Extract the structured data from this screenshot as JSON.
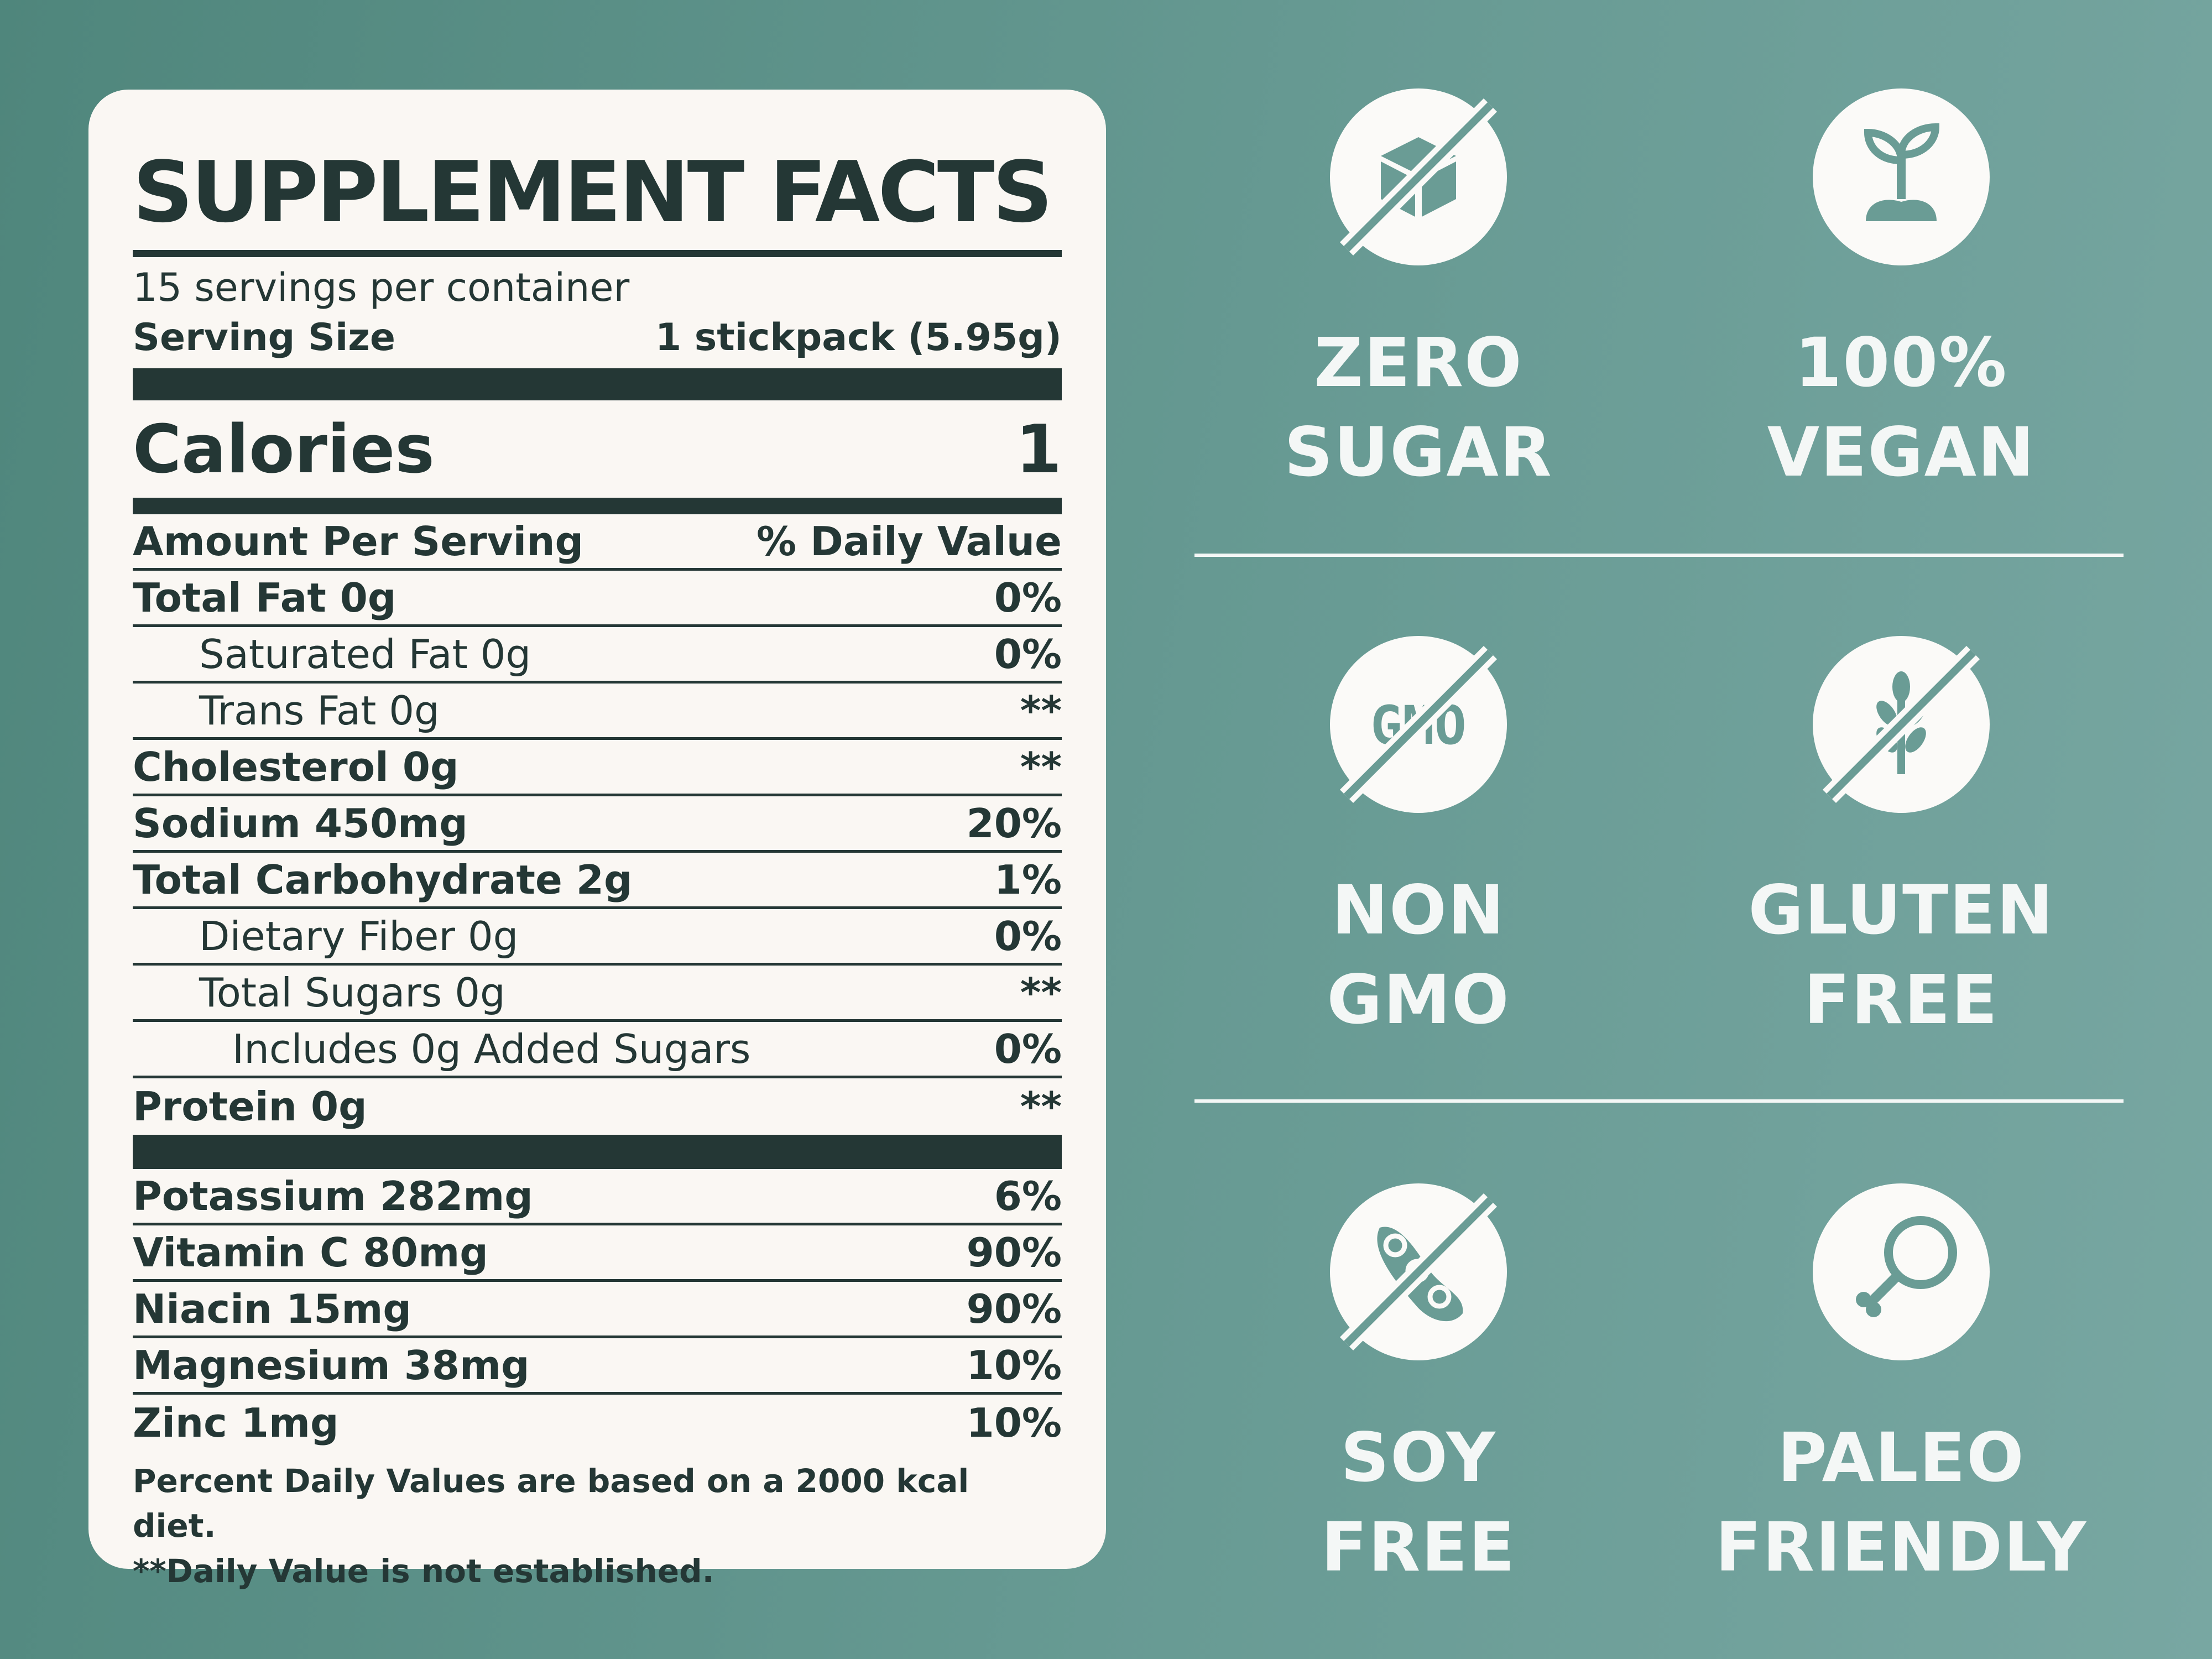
{
  "label": {
    "title": "SUPPLEMENT FACTS",
    "servings_per_container": "15 servings per container",
    "serving_size_label": "Serving Size",
    "serving_size_value": "1 stickpack (5.95g)",
    "calories_label": "Calories",
    "calories_value": "1",
    "header_amount": "Amount Per Serving",
    "header_dv": "% Daily Value",
    "nutrients": [
      {
        "name": "Total Fat 0g",
        "dv": "0%"
      },
      {
        "name": "Saturated Fat 0g",
        "dv": "0%"
      },
      {
        "name": "Trans Fat 0g",
        "dv": "**"
      },
      {
        "name": "Cholesterol 0g",
        "dv": "**"
      },
      {
        "name": "Sodium 450mg",
        "dv": "20%"
      },
      {
        "name": "Total Carbohydrate 2g",
        "dv": "1%"
      },
      {
        "name": "Dietary Fiber 0g",
        "dv": "0%"
      },
      {
        "name": "Total Sugars 0g",
        "dv": "**"
      },
      {
        "name": "Includes 0g Added Sugars",
        "dv": "0%"
      },
      {
        "name": "Protein 0g",
        "dv": "**"
      }
    ],
    "minerals": [
      {
        "name": "Potassium 282mg",
        "dv": "6%"
      },
      {
        "name": "Vitamin C 80mg",
        "dv": "90%"
      },
      {
        "name": "Niacin 15mg",
        "dv": "90%"
      },
      {
        "name": "Magnesium 38mg",
        "dv": "10%"
      },
      {
        "name": "Zinc 1mg",
        "dv": "10%"
      }
    ],
    "footnote_1": "Percent Daily Values are based on a 2000 kcal diet.",
    "footnote_2": "**Daily Value is not established."
  },
  "badges": [
    {
      "icon": "sugar-cube-icon",
      "line1": "ZERO",
      "line2": "SUGAR"
    },
    {
      "icon": "plant-sprout-icon",
      "line1": "100%",
      "line2": "VEGAN"
    },
    {
      "icon": "gmo-icon",
      "icon_text": "GMO",
      "line1": "NON",
      "line2": "GMO"
    },
    {
      "icon": "wheat-icon",
      "line1": "GLUTEN",
      "line2": "FREE"
    },
    {
      "icon": "soybean-icon",
      "line1": "SOY",
      "line2": "FREE"
    },
    {
      "icon": "chicken-leg-icon",
      "line1": "PALEO",
      "line2": "FRIENDLY"
    }
  ],
  "colors": {
    "background": "#5f948b",
    "label_bg": "#faf7f3",
    "ink": "#243735",
    "icon_fill": "#6a9c95"
  }
}
